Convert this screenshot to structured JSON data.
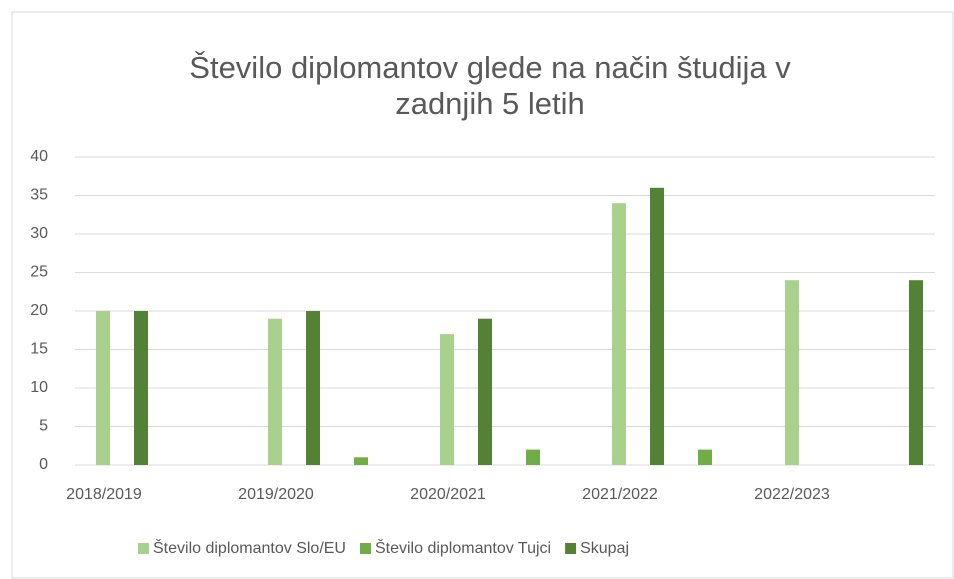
{
  "chart_data": {
    "type": "bar",
    "title": [
      "Število diplomantov glede na način študija v",
      "zadnjih 5 letih"
    ],
    "categories": [
      "2018/2019",
      "2019/2020",
      "2020/2021",
      "2021/2022",
      "2022/2023"
    ],
    "series": [
      {
        "name": "Število diplomantov Slo/EU",
        "color": "#a9d18e",
        "values": [
          20,
          19,
          17,
          34,
          24
        ]
      },
      {
        "name": "Število diplomantov Tujci",
        "color": "#70ad47",
        "values": [
          null,
          1,
          2,
          2,
          null
        ]
      },
      {
        "name": "Skupaj",
        "color": "#548235",
        "values": [
          20,
          20,
          19,
          36,
          24
        ]
      }
    ],
    "ylim": [
      0,
      40
    ],
    "yticks": [
      0,
      5,
      10,
      15,
      20,
      25,
      30,
      35,
      40
    ],
    "grid": true,
    "legend": "bottom"
  }
}
